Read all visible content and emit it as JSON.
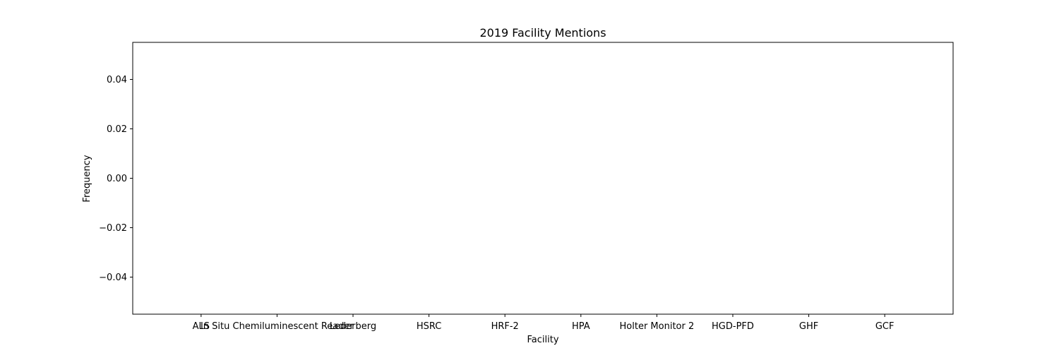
{
  "chart_data": {
    "type": "bar",
    "title": "2019 Facility Mentions",
    "xlabel": "Facility",
    "ylabel": "Frequency",
    "categories": [
      "ALS",
      "In Situ Chemiluminescent Reader",
      "Lederberg",
      "HSRC",
      "HRF-2",
      "HPA",
      "Holter Monitor 2",
      "HGD-PFD",
      "GHF",
      "GCF"
    ],
    "values": [
      0,
      0,
      0,
      0,
      0,
      0,
      0,
      0,
      0,
      0
    ],
    "ylim": [
      -0.055,
      0.055
    ],
    "yticks": [
      0.04,
      0.02,
      0.0,
      -0.02,
      -0.04
    ],
    "ytick_labels": [
      "0.04",
      "0.02",
      "0.00",
      "−0.02",
      "−0.04"
    ],
    "grid": false,
    "bar_color": "#1f77b4"
  }
}
